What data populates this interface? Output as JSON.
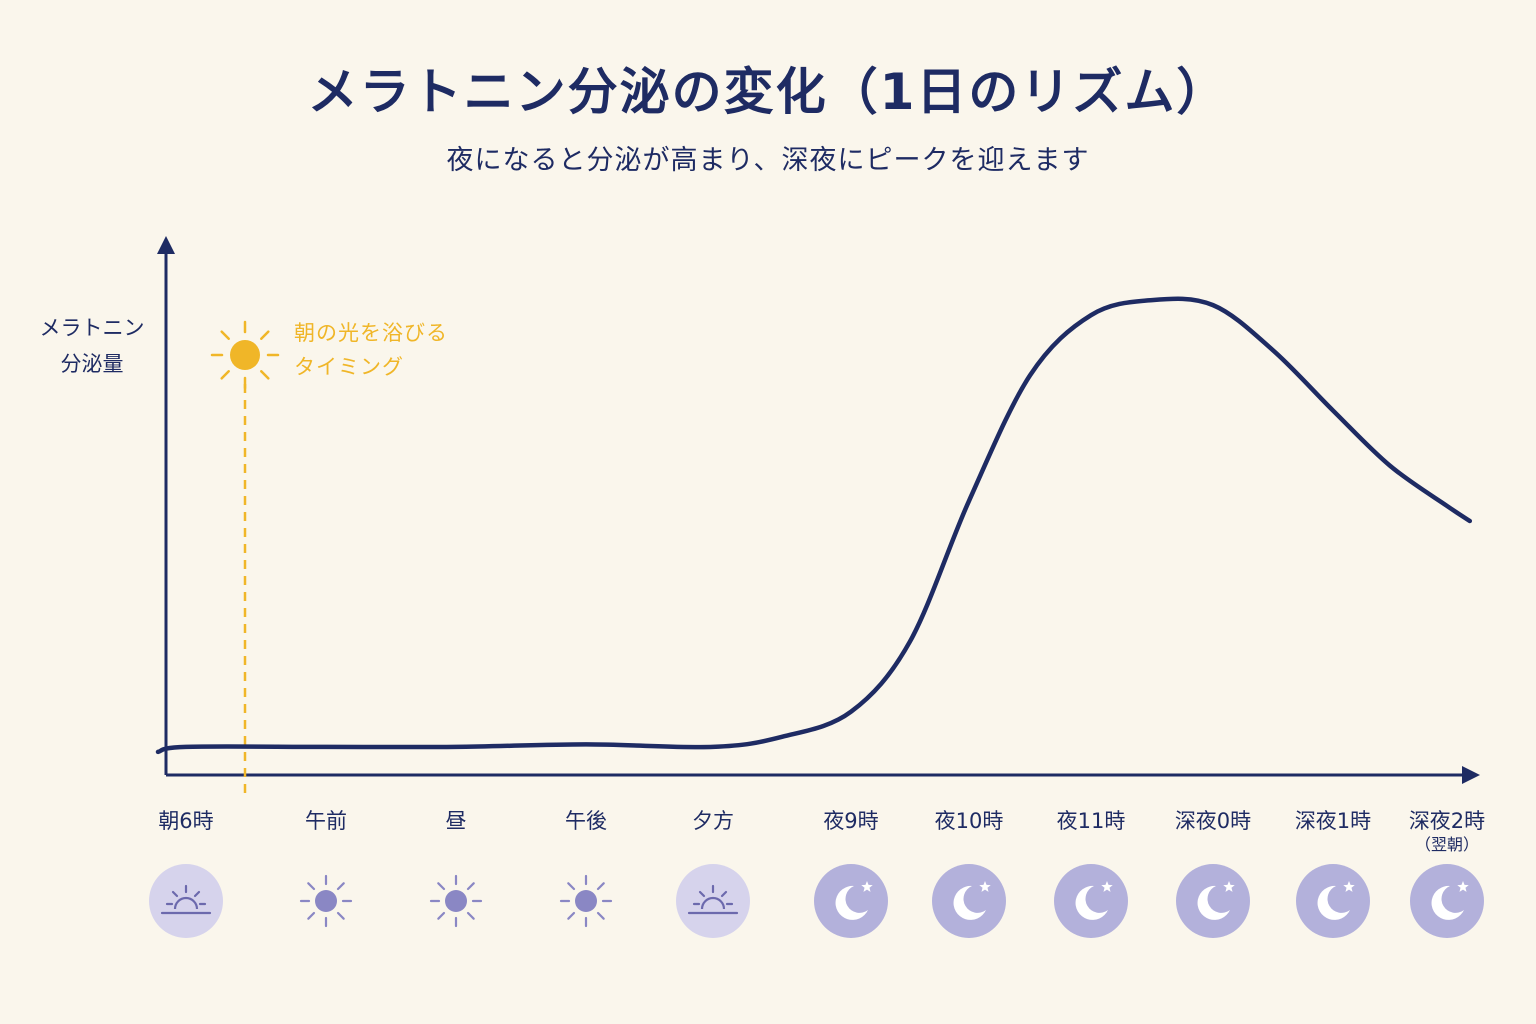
{
  "title": "メラトニン分泌の変化（1日のリズム）",
  "subtitle": "夜になると分泌が高まり、深夜にピークを迎えます",
  "colors": {
    "background": "#faf6ec",
    "navy": "#1e2b63",
    "sun_yellow": "#f0b628",
    "icon_lavender": "#b3b1db",
    "icon_lavender_light": "#d6d3ec",
    "icon_purple": "#8a87c4"
  },
  "chart_data": {
    "type": "line",
    "ylabel_lines": [
      "メラトニン",
      "分泌量"
    ],
    "y_tick_labels": false,
    "ylim": [
      0,
      100
    ],
    "categories": [
      "朝6時",
      "午前",
      "昼",
      "午後",
      "夕方",
      "夜9時",
      "夜10時",
      "夜11時",
      "深夜0時",
      "深夜1時",
      "深夜2時"
    ],
    "category_sublabels": [
      "",
      "",
      "",
      "",
      "",
      "",
      "",
      "",
      "",
      "",
      "（翌朝）"
    ],
    "category_icons": [
      "sunrise-icon",
      "sun-icon",
      "sun-icon",
      "sun-icon",
      "sunset-icon",
      "moon-star-icon",
      "moon-star-icon",
      "moon-star-icon",
      "moon-star-icon",
      "moon-star-icon",
      "moon-star-icon"
    ],
    "series": [
      {
        "x": [
          -0.2,
          0,
          1,
          2,
          3,
          4,
          4.5,
          5,
          5.5,
          6,
          6.5,
          7,
          7.5,
          8,
          8.5,
          9,
          9.5,
          10,
          10.2
        ],
        "values": [
          5,
          6,
          6,
          6,
          6.5,
          6,
          8,
          13,
          27,
          55,
          80,
          92,
          95,
          94,
          85,
          73,
          62,
          54,
          51
        ]
      }
    ],
    "annotation": {
      "x_category": "朝6時",
      "lines": [
        "朝の光を浴びる",
        "タイミング"
      ],
      "icon": "sun-icon"
    },
    "grid": false,
    "legend": "none"
  }
}
